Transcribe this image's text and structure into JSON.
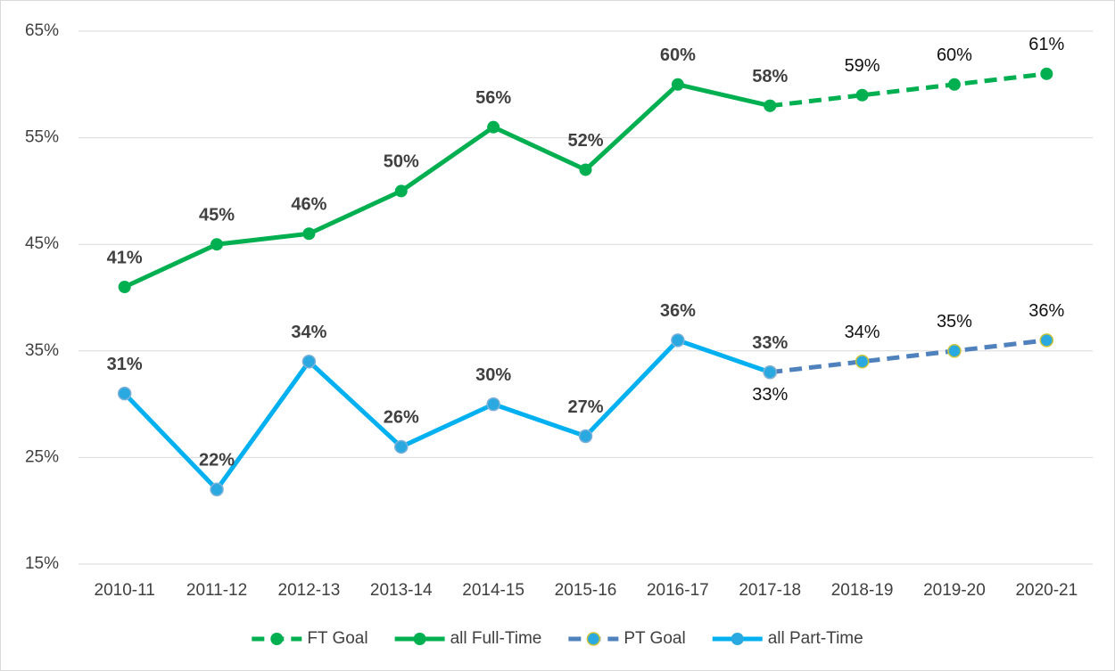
{
  "chart_data": {
    "type": "line",
    "categories": [
      "2010-11",
      "2011-12",
      "2012-13",
      "2013-14",
      "2014-15",
      "2015-16",
      "2016-17",
      "2017-18",
      "2018-19",
      "2019-20",
      "2020-21"
    ],
    "series": [
      {
        "name": "FT Goal",
        "color": "#00b050",
        "marker_color": "#00b050",
        "dashed": true,
        "bold_labels": false,
        "values": [
          null,
          null,
          null,
          null,
          null,
          null,
          null,
          58,
          59,
          60,
          61
        ],
        "value_labels": [
          null,
          null,
          null,
          null,
          null,
          null,
          null,
          null,
          "59%",
          "60%",
          "61%"
        ]
      },
      {
        "name": "all Full-Time",
        "color": "#00b050",
        "marker_color": "#00b050",
        "dashed": false,
        "bold_labels": true,
        "values": [
          41,
          45,
          46,
          50,
          56,
          52,
          60,
          58,
          null,
          null,
          null
        ],
        "value_labels": [
          "41%",
          "45%",
          "46%",
          "50%",
          "56%",
          "52%",
          "60%",
          "58%",
          null,
          null,
          null
        ]
      },
      {
        "name": "PT Goal",
        "color": "#4f81bd",
        "marker_color": "#29a9e0",
        "dashed": true,
        "bold_labels": false,
        "values": [
          null,
          null,
          null,
          null,
          null,
          null,
          null,
          33,
          34,
          35,
          36
        ],
        "value_labels": [
          null,
          null,
          null,
          null,
          null,
          null,
          null,
          "33%",
          "34%",
          "35%",
          "36%"
        ]
      },
      {
        "name": "all Part-Time",
        "color": "#00b0f0",
        "marker_color": "#29a9e0",
        "dashed": false,
        "bold_labels": true,
        "values": [
          31,
          22,
          34,
          26,
          30,
          27,
          36,
          33,
          null,
          null,
          null
        ],
        "value_labels": [
          "31%",
          "22%",
          "34%",
          "26%",
          "30%",
          "27%",
          "36%",
          "33%",
          null,
          null,
          null
        ]
      }
    ],
    "ylim": [
      15,
      65
    ],
    "yticks": [
      {
        "value": 15,
        "label": "15%"
      },
      {
        "value": 25,
        "label": "25%"
      },
      {
        "value": 35,
        "label": "35%"
      },
      {
        "value": 45,
        "label": "45%"
      },
      {
        "value": 55,
        "label": "55%"
      },
      {
        "value": 65,
        "label": "65%"
      }
    ],
    "grid": true,
    "legend": "bottom"
  }
}
